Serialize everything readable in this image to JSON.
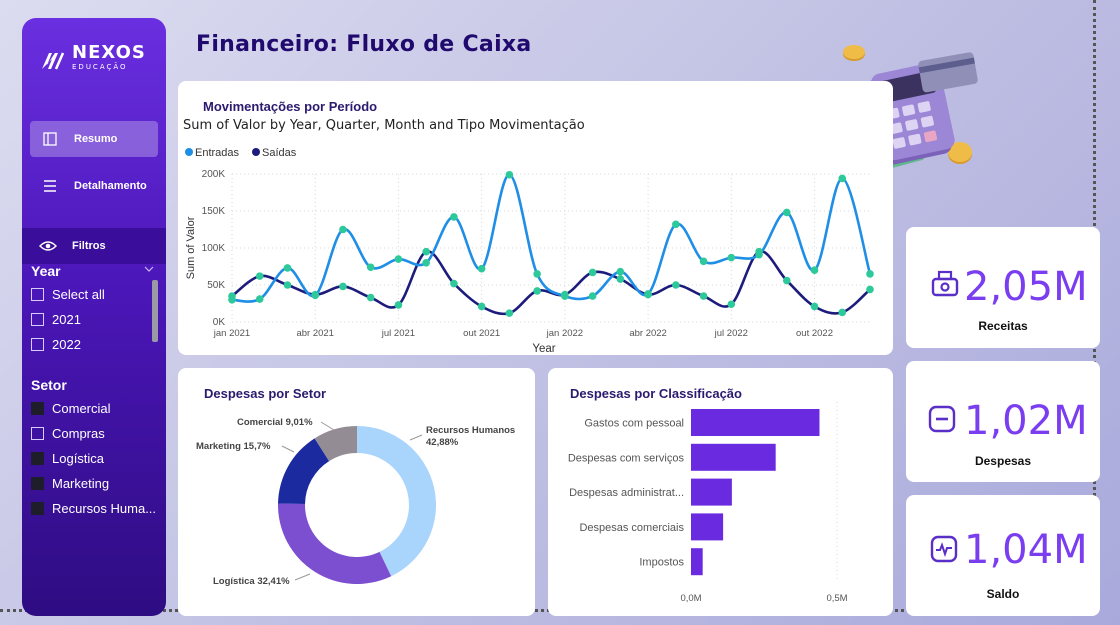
{
  "sidebar": {
    "logo_text": "NEXOS",
    "logo_sub": "EDUCAÇÃO",
    "nav": [
      {
        "label": "Resumo",
        "icon": "layout-icon"
      },
      {
        "label": "Detalhamento",
        "icon": "menu-icon"
      }
    ],
    "filters_label": "Filtros",
    "year_filter": {
      "title": "Year",
      "options": [
        {
          "label": "Select all",
          "checked": false
        },
        {
          "label": "2021",
          "checked": false
        },
        {
          "label": "2022",
          "checked": false
        }
      ]
    },
    "setor_filter": {
      "title": "Setor",
      "options": [
        {
          "label": "Comercial",
          "checked": true
        },
        {
          "label": "Compras",
          "checked": false
        },
        {
          "label": "Logística",
          "checked": true
        },
        {
          "label": "Marketing",
          "checked": true
        },
        {
          "label": "Recursos Huma...",
          "checked": true
        }
      ]
    }
  },
  "page": {
    "title": "Financeiro: Fluxo de Caixa"
  },
  "line_card": {
    "title": "Movimentações por Período",
    "subtitle": "Sum of Valor by Year, Quarter, Month and Tipo Movimentação"
  },
  "donut_card": {
    "title": "Despesas por Setor"
  },
  "bar_card": {
    "title": "Despesas por Classificação"
  },
  "kpis": [
    {
      "value": "2,05M",
      "label": "Receitas",
      "icon": "cash-register-icon"
    },
    {
      "value": "1,02M",
      "label": "Despesas",
      "icon": "minus-square-icon"
    },
    {
      "value": "1,04M",
      "label": "Saldo",
      "icon": "pulse-icon"
    }
  ],
  "colors": {
    "entradas": "#1e8ee6",
    "saidas": "#1d1c7c",
    "markers": "#2ec99a",
    "bar": "#6a2be0",
    "kpi": "#7a3df0",
    "rh": "#a9d4fb",
    "logistica": "#7b4fd0",
    "marketing": "#1c2aa0",
    "comercial": "#948c94"
  },
  "chart_data": [
    {
      "type": "line",
      "title": "Sum of Valor by Year, Quarter, Month and Tipo Movimentação",
      "xlabel": "Year",
      "ylabel": "Sum of Valor",
      "ylim": [
        0,
        200000
      ],
      "yticks": [
        "0K",
        "50K",
        "100K",
        "150K",
        "200K"
      ],
      "xtick_labels": [
        {
          "index": 0,
          "label": "jan 2021"
        },
        {
          "index": 3,
          "label": "abr 2021"
        },
        {
          "index": 6,
          "label": "jul 2021"
        },
        {
          "index": 9,
          "label": "out 2021"
        },
        {
          "index": 12,
          "label": "jan 2022"
        },
        {
          "index": 15,
          "label": "abr 2022"
        },
        {
          "index": 18,
          "label": "jul 2022"
        },
        {
          "index": 21,
          "label": "out 2022"
        }
      ],
      "x": [
        "jan 2021",
        "fev 2021",
        "mar 2021",
        "abr 2021",
        "mai 2021",
        "jun 2021",
        "jul 2021",
        "ago 2021",
        "set 2021",
        "out 2021",
        "nov 2021",
        "dez 2021",
        "jan 2022",
        "fev 2022",
        "mar 2022",
        "abr 2022",
        "mai 2022",
        "jun 2022",
        "jul 2022",
        "ago 2022",
        "set 2022",
        "out 2022",
        "nov 2022",
        "dez 2022"
      ],
      "legend": "top-left",
      "grid": true,
      "series": [
        {
          "name": "Entradas",
          "values": [
            30000,
            31000,
            73000,
            36000,
            125000,
            74000,
            85000,
            80000,
            142000,
            72000,
            199000,
            65000,
            35000,
            35000,
            68000,
            38000,
            132000,
            82000,
            87000,
            91000,
            148000,
            70000,
            194000,
            65000
          ]
        },
        {
          "name": "Saídas",
          "values": [
            35000,
            62000,
            50000,
            37000,
            48000,
            33000,
            23000,
            95000,
            52000,
            21000,
            12000,
            42000,
            37000,
            67000,
            58000,
            37000,
            50000,
            35000,
            24000,
            95000,
            56000,
            21000,
            13000,
            44000
          ]
        }
      ]
    },
    {
      "type": "pie",
      "title": "Despesas por Setor",
      "slices": [
        {
          "label": "Recursos Humanos",
          "value": 42.88,
          "text": "42,88%"
        },
        {
          "label": "Logística",
          "value": 32.41,
          "text": "32,41%"
        },
        {
          "label": "Marketing",
          "value": 15.7,
          "text": "15,7%"
        },
        {
          "label": "Comercial",
          "value": 9.01,
          "text": "9,01%"
        }
      ]
    },
    {
      "type": "bar",
      "title": "Despesas por Classificação",
      "orientation": "horizontal",
      "categories": [
        "Gastos com pessoal",
        "Despesas com serviços",
        "Despesas administrat...",
        "Despesas comerciais",
        "Impostos"
      ],
      "values": [
        0.44,
        0.29,
        0.14,
        0.11,
        0.04
      ],
      "unit": "M",
      "xticks": [
        "0,0M",
        "0,5M"
      ],
      "xlim": [
        0,
        0.5
      ]
    }
  ]
}
